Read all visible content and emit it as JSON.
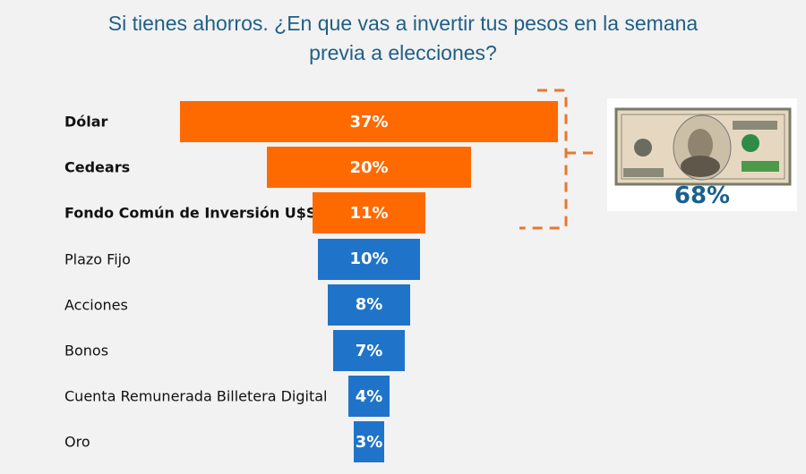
{
  "chart_data": {
    "type": "bar",
    "orientation": "horizontal-funnel",
    "title": "Si tienes ahorros. ¿En que vas a invertir tus pesos en la semana previa a elecciones?",
    "categories": [
      "Dólar",
      "Cedears",
      "Fondo Común de Inversión U$S",
      "Plazo Fijo",
      "Acciones",
      "Bonos",
      "Cuenta Remunerada Billetera Digital",
      "Oro"
    ],
    "values": [
      37,
      20,
      11,
      10,
      8,
      7,
      4,
      3
    ],
    "data_labels": [
      "37%",
      "20%",
      "11%",
      "10%",
      "8%",
      "7%",
      "4%",
      "3%"
    ],
    "highlighted": [
      true,
      true,
      true,
      false,
      false,
      false,
      false,
      false
    ],
    "colors": {
      "highlight": "#ff6a00",
      "default": "#1f74c9"
    },
    "grid": false,
    "annotation": {
      "group_total_label": "68%",
      "icon": "us-100-dollar-bill",
      "bracket_color": "#e8772e"
    }
  }
}
